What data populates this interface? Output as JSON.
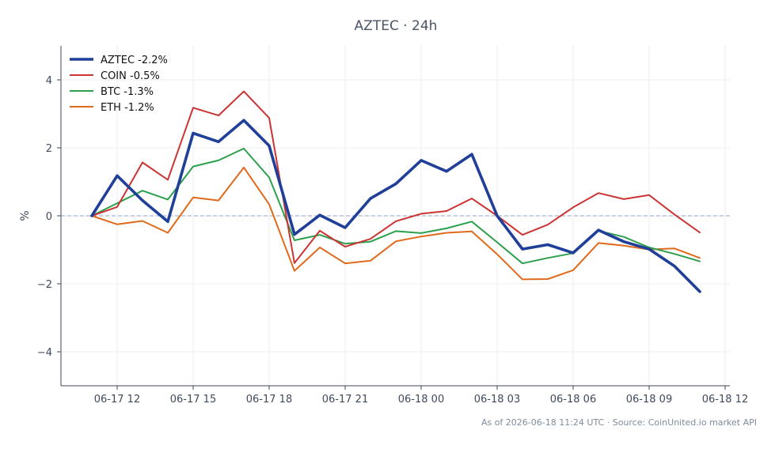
{
  "chart_data": {
    "type": "line",
    "title": "AZTEC · 24h",
    "xlabel": "",
    "ylabel": "%",
    "x_ticks": [
      "06-17 12",
      "06-17 15",
      "06-17 18",
      "06-17 21",
      "06-18 00",
      "06-18 03",
      "06-18 06",
      "06-18 09",
      "06-18 12"
    ],
    "x": [
      "06-17 11:00",
      "06-17 12:00",
      "06-17 13:00",
      "06-17 14:00",
      "06-17 15:00",
      "06-17 16:00",
      "06-17 17:00",
      "06-17 18:00",
      "06-17 19:00",
      "06-17 20:00",
      "06-17 21:00",
      "06-17 22:00",
      "06-17 23:00",
      "06-18 00:00",
      "06-18 01:00",
      "06-18 02:00",
      "06-18 03:00",
      "06-18 04:00",
      "06-18 05:00",
      "06-18 06:00",
      "06-18 07:00",
      "06-18 08:00",
      "06-18 09:00",
      "06-18 10:00",
      "06-18 11:00"
    ],
    "ylim": [
      -5,
      5
    ],
    "yticks": [
      -4,
      -2,
      0,
      2,
      4
    ],
    "grid": true,
    "legend_position": "top-left",
    "reference_line": 0,
    "series": [
      {
        "name": "AZTEC -2.2%",
        "color": "#1f3f99",
        "values": [
          0.0,
          1.18,
          0.45,
          -0.17,
          2.43,
          2.18,
          2.81,
          2.06,
          -0.55,
          0.02,
          -0.35,
          0.51,
          0.94,
          1.63,
          1.31,
          1.81,
          0.0,
          -0.98,
          -0.85,
          -1.09,
          -0.42,
          -0.76,
          -0.98,
          -1.48,
          -2.23
        ]
      },
      {
        "name": "COIN -0.5%",
        "color": "#cc3333",
        "values": [
          0.0,
          0.26,
          1.57,
          1.06,
          3.18,
          2.95,
          3.66,
          2.88,
          -1.39,
          -0.44,
          -0.91,
          -0.68,
          -0.16,
          0.06,
          0.14,
          0.51,
          0.0,
          -0.56,
          -0.26,
          0.25,
          0.67,
          0.49,
          0.61,
          0.04,
          -0.49
        ]
      },
      {
        "name": "BTC -1.3%",
        "color": "#2ca04c",
        "values": [
          0.0,
          0.37,
          0.74,
          0.48,
          1.45,
          1.63,
          1.98,
          1.13,
          -0.72,
          -0.56,
          -0.82,
          -0.76,
          -0.45,
          -0.51,
          -0.37,
          -0.17,
          -0.78,
          -1.4,
          -1.24,
          -1.1,
          -0.44,
          -0.62,
          -0.93,
          -1.12,
          -1.34
        ]
      },
      {
        "name": "ETH -1.2%",
        "color": "#e06a1b",
        "values": [
          0.0,
          -0.25,
          -0.15,
          -0.5,
          0.54,
          0.45,
          1.42,
          0.34,
          -1.62,
          -0.93,
          -1.4,
          -1.32,
          -0.75,
          -0.61,
          -0.5,
          -0.46,
          -1.13,
          -1.87,
          -1.86,
          -1.6,
          -0.8,
          -0.88,
          -0.99,
          -0.96,
          -1.24
        ]
      }
    ],
    "footer": "As of 2026-06-18 11:24 UTC · Source: CoinUnited.io market API"
  }
}
